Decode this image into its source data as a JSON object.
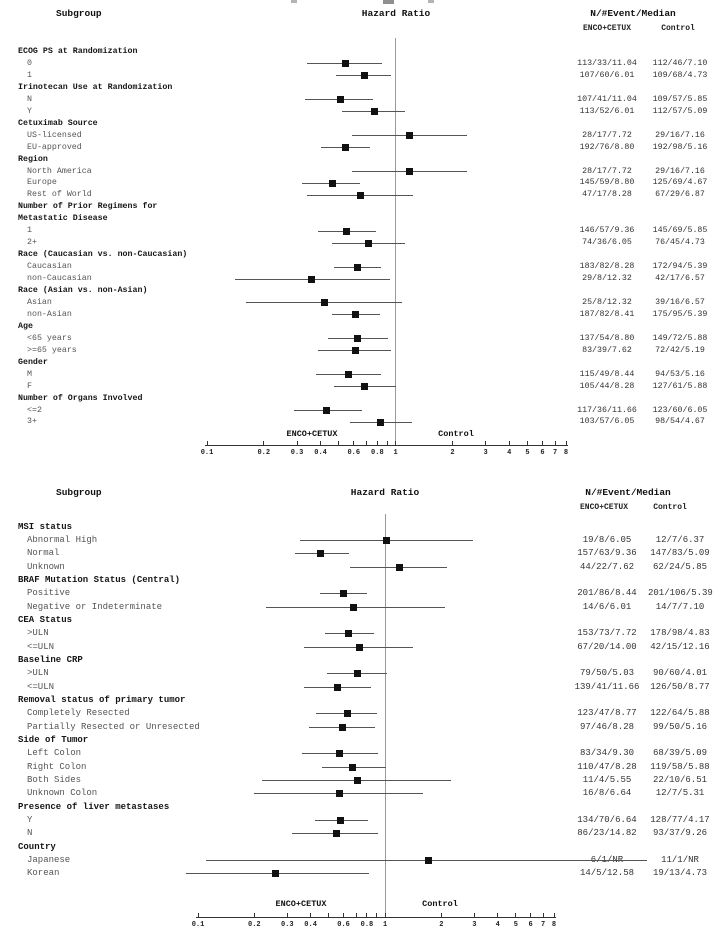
{
  "colors": {
    "bg": "#ffffff",
    "header_text": "#111111",
    "item_text": "#555555",
    "value_text": "#333333",
    "ci_line": "#555555",
    "marker": "#111111",
    "ref_line": "#999999",
    "axis": "#333333"
  },
  "chart_data": [
    {
      "type": "scatter",
      "subtype": "forest-plot",
      "headers": {
        "subgroup": "Subgroup",
        "hazard_ratio": "Hazard Ratio",
        "n_event_median": "N/#Event/Median",
        "arm1": "ENCO+CETUX",
        "arm2": "Control"
      },
      "group_labels": {
        "left": "ENCO+CETUX",
        "right": "Control"
      },
      "axis": {
        "scale": "log",
        "min": 0.1,
        "max": 8,
        "ref_line": 1,
        "ticks": [
          0.1,
          0.2,
          0.3,
          0.4,
          0.5,
          0.6,
          0.7,
          0.8,
          0.9,
          1,
          2,
          3,
          4,
          5,
          6,
          7,
          8
        ],
        "labels": [
          "0.1",
          "0.2",
          "0.3",
          "0.4",
          "0.6",
          "0.8",
          "1",
          "2",
          "3",
          "4",
          "5",
          "6",
          "7",
          "8"
        ]
      },
      "rows": [
        {
          "t": "h",
          "label": "ECOG PS at Randomization"
        },
        {
          "t": "i",
          "label": "0",
          "hr": 0.54,
          "lo": 0.34,
          "hi": 0.85,
          "arm1": "113/33/11.04",
          "arm2": "112/46/7.10"
        },
        {
          "t": "i",
          "label": "1",
          "hr": 0.68,
          "lo": 0.48,
          "hi": 0.95,
          "arm1": "107/60/6.01",
          "arm2": "109/68/4.73"
        },
        {
          "t": "h",
          "label": "Irinotecan Use at Randomization"
        },
        {
          "t": "i",
          "label": "N",
          "hr": 0.51,
          "lo": 0.33,
          "hi": 0.76,
          "arm1": "107/41/11.04",
          "arm2": "109/57/5.85"
        },
        {
          "t": "i",
          "label": "Y",
          "hr": 0.77,
          "lo": 0.52,
          "hi": 1.12,
          "arm1": "113/52/6.01",
          "arm2": "112/57/5.09"
        },
        {
          "t": "h",
          "label": "Cetuximab Source"
        },
        {
          "t": "i",
          "label": "US-licensed",
          "hr": 1.19,
          "lo": 0.59,
          "hi": 2.4,
          "arm1": "28/17/7.72",
          "arm2": "29/16/7.16"
        },
        {
          "t": "i",
          "label": "EU-approved",
          "hr": 0.54,
          "lo": 0.4,
          "hi": 0.73,
          "arm1": "192/76/8.80",
          "arm2": "192/98/5.16"
        },
        {
          "t": "h",
          "label": "Region"
        },
        {
          "t": "i",
          "label": "North America",
          "hr": 1.19,
          "lo": 0.59,
          "hi": 2.4,
          "arm1": "28/17/7.72",
          "arm2": "29/16/7.16"
        },
        {
          "t": "i",
          "label": "Europe",
          "hr": 0.46,
          "lo": 0.32,
          "hi": 0.65,
          "arm1": "145/59/8.80",
          "arm2": "125/69/4.67"
        },
        {
          "t": "i",
          "label": "Rest of World",
          "hr": 0.65,
          "lo": 0.34,
          "hi": 1.23,
          "arm1": "47/17/8.28",
          "arm2": "67/29/6.87"
        },
        {
          "t": "h",
          "label": "Number of Prior Regimens for"
        },
        {
          "t": "h",
          "label": "Metastatic Disease"
        },
        {
          "t": "i",
          "label": "1",
          "hr": 0.55,
          "lo": 0.39,
          "hi": 0.79,
          "arm1": "146/57/9.36",
          "arm2": "145/69/5.85"
        },
        {
          "t": "i",
          "label": "2+",
          "hr": 0.72,
          "lo": 0.46,
          "hi": 1.12,
          "arm1": "74/36/6.05",
          "arm2": "76/45/4.73"
        },
        {
          "t": "h",
          "label": "Race (Caucasian vs. non-Caucasian)"
        },
        {
          "t": "i",
          "label": "Caucasian",
          "hr": 0.63,
          "lo": 0.47,
          "hi": 0.84,
          "arm1": "183/82/8.28",
          "arm2": "172/94/5.39"
        },
        {
          "t": "i",
          "label": "non-Caucasian",
          "hr": 0.36,
          "lo": 0.14,
          "hi": 0.93,
          "arm1": "29/8/12.32",
          "arm2": "42/17/6.57"
        },
        {
          "t": "h",
          "label": "Race (Asian vs. non-Asian)"
        },
        {
          "t": "i",
          "label": "Asian",
          "hr": 0.42,
          "lo": 0.16,
          "hi": 1.08,
          "arm1": "25/8/12.32",
          "arm2": "39/16/6.57"
        },
        {
          "t": "i",
          "label": "non-Asian",
          "hr": 0.61,
          "lo": 0.46,
          "hi": 0.83,
          "arm1": "187/82/8.41",
          "arm2": "175/95/5.39"
        },
        {
          "t": "h",
          "label": "Age"
        },
        {
          "t": "i",
          "label": "<65 years",
          "hr": 0.63,
          "lo": 0.44,
          "hi": 0.91,
          "arm1": "137/54/8.80",
          "arm2": "149/72/5.88"
        },
        {
          "t": "i",
          "label": ">=65 years",
          "hr": 0.61,
          "lo": 0.39,
          "hi": 0.94,
          "arm1": "83/39/7.62",
          "arm2": "72/42/5.19"
        },
        {
          "t": "h",
          "label": "Gender"
        },
        {
          "t": "i",
          "label": "M",
          "hr": 0.56,
          "lo": 0.38,
          "hi": 0.84,
          "arm1": "115/49/8.44",
          "arm2": "94/53/5.16"
        },
        {
          "t": "i",
          "label": "F",
          "hr": 0.68,
          "lo": 0.47,
          "hi": 1.01,
          "arm1": "105/44/8.28",
          "arm2": "127/61/5.88"
        },
        {
          "t": "h",
          "label": "Number of Organs Involved"
        },
        {
          "t": "i",
          "label": "<=2",
          "hr": 0.43,
          "lo": 0.29,
          "hi": 0.66,
          "arm1": "117/36/11.66",
          "arm2": "123/60/6.05"
        },
        {
          "t": "i",
          "label": "3+",
          "hr": 0.83,
          "lo": 0.57,
          "hi": 1.22,
          "arm1": "103/57/6.05",
          "arm2": "98/54/4.67"
        }
      ]
    },
    {
      "type": "scatter",
      "subtype": "forest-plot",
      "headers": {
        "subgroup": "Subgroup",
        "hazard_ratio": "Hazard Ratio",
        "n_event_median": "N/#Event/Median",
        "arm1": "ENCO+CETUX",
        "arm2": "Control"
      },
      "group_labels": {
        "left": "ENCO+CETUX",
        "right": "Control"
      },
      "axis": {
        "scale": "log",
        "min": 0.1,
        "max": 8,
        "ref_line": 1,
        "ticks": [
          0.1,
          0.2,
          0.3,
          0.4,
          0.5,
          0.6,
          0.7,
          0.8,
          0.9,
          1,
          2,
          3,
          4,
          5,
          6,
          7,
          8
        ],
        "labels": [
          "0.1",
          "0.2",
          "0.3",
          "0.4",
          "0.6",
          "0.8",
          "1",
          "2",
          "3",
          "4",
          "5",
          "6",
          "7",
          "8"
        ]
      },
      "rows": [
        {
          "t": "h",
          "label": "MSI status"
        },
        {
          "t": "i",
          "label": "Abnormal High",
          "hr": 1.02,
          "lo": 0.35,
          "hi": 2.95,
          "arm1": "19/8/6.05",
          "arm2": "12/7/6.37"
        },
        {
          "t": "i",
          "label": "Normal",
          "hr": 0.45,
          "lo": 0.33,
          "hi": 0.64,
          "arm1": "157/63/9.36",
          "arm2": "147/83/5.09"
        },
        {
          "t": "i",
          "label": "Unknown",
          "hr": 1.19,
          "lo": 0.65,
          "hi": 2.14,
          "arm1": "44/22/7.62",
          "arm2": "62/24/5.85"
        },
        {
          "t": "h",
          "label": "BRAF Mutation Status (Central)"
        },
        {
          "t": "i",
          "label": "Positive",
          "hr": 0.6,
          "lo": 0.45,
          "hi": 0.8,
          "arm1": "201/86/8.44",
          "arm2": "201/106/5.39"
        },
        {
          "t": "i",
          "label": "Negative or Indeterminate",
          "hr": 0.68,
          "lo": 0.23,
          "hi": 2.1,
          "arm1": "14/6/6.01",
          "arm2": "14/7/7.10"
        },
        {
          "t": "h",
          "label": "CEA Status"
        },
        {
          "t": "i",
          "label": ">ULN",
          "hr": 0.64,
          "lo": 0.48,
          "hi": 0.87,
          "arm1": "153/73/7.72",
          "arm2": "178/98/4.83"
        },
        {
          "t": "i",
          "label": "<=ULN",
          "hr": 0.73,
          "lo": 0.37,
          "hi": 1.41,
          "arm1": "67/20/14.00",
          "arm2": "42/15/12.16"
        },
        {
          "t": "h",
          "label": "Baseline CRP"
        },
        {
          "t": "i",
          "label": ">ULN",
          "hr": 0.71,
          "lo": 0.49,
          "hi": 1.02,
          "arm1": "79/50/5.03",
          "arm2": "90/60/4.01"
        },
        {
          "t": "i",
          "label": "<=ULN",
          "hr": 0.56,
          "lo": 0.37,
          "hi": 0.84,
          "arm1": "139/41/11.66",
          "arm2": "126/50/8.77"
        },
        {
          "t": "h",
          "label": "Removal status of primary tumor"
        },
        {
          "t": "i",
          "label": "Completely Resected",
          "hr": 0.63,
          "lo": 0.43,
          "hi": 0.91,
          "arm1": "123/47/8.77",
          "arm2": "122/64/5.88"
        },
        {
          "t": "i",
          "label": "Partially Resected or Unresected",
          "hr": 0.59,
          "lo": 0.39,
          "hi": 0.88,
          "arm1": "97/46/8.28",
          "arm2": "99/50/5.16"
        },
        {
          "t": "h",
          "label": "Side of Tumor"
        },
        {
          "t": "i",
          "label": "Left Colon",
          "hr": 0.57,
          "lo": 0.36,
          "hi": 0.92,
          "arm1": "83/34/9.30",
          "arm2": "68/39/5.09"
        },
        {
          "t": "i",
          "label": "Right Colon",
          "hr": 0.67,
          "lo": 0.46,
          "hi": 1.01,
          "arm1": "110/47/8.28",
          "arm2": "119/58/5.88"
        },
        {
          "t": "i",
          "label": "Both Sides",
          "hr": 0.71,
          "lo": 0.22,
          "hi": 2.26,
          "arm1": "11/4/5.55",
          "arm2": "22/10/6.51"
        },
        {
          "t": "i",
          "label": "Unknown Colon",
          "hr": 0.57,
          "lo": 0.2,
          "hi": 1.59,
          "arm1": "16/8/6.64",
          "arm2": "12/7/5.31"
        },
        {
          "t": "h",
          "label": "Presence of liver metastases"
        },
        {
          "t": "i",
          "label": "Y",
          "hr": 0.58,
          "lo": 0.42,
          "hi": 0.81,
          "arm1": "134/70/6.64",
          "arm2": "128/77/4.17"
        },
        {
          "t": "i",
          "label": "N",
          "hr": 0.55,
          "lo": 0.32,
          "hi": 0.92,
          "arm1": "86/23/14.82",
          "arm2": "93/37/9.26"
        },
        {
          "t": "h",
          "label": "Country"
        },
        {
          "t": "i",
          "label": "Japanese",
          "hr": 1.7,
          "lo": 0.11,
          "hi": 25,
          "hi_offscale": true,
          "arm1": "6/1/NR",
          "arm2": "11/1/NR"
        },
        {
          "t": "i",
          "label": "Korean",
          "hr": 0.26,
          "lo": 0.086,
          "hi": 0.82,
          "arm1": "14/5/12.58",
          "arm2": "19/13/4.73"
        }
      ]
    }
  ]
}
